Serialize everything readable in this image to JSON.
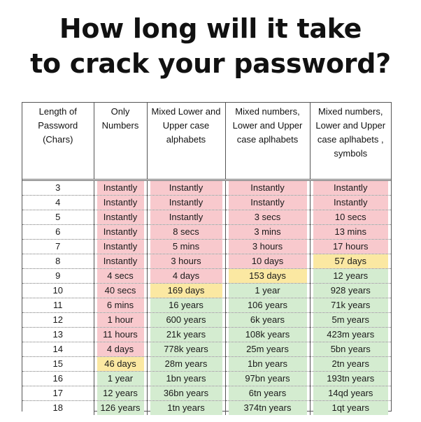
{
  "title": {
    "line1": "How long will it take",
    "line2": "to crack your password?"
  },
  "table": {
    "headers": [
      "Length of Password (Chars)",
      "Only Numbers",
      "Mixed Lower and Upper case alphabets",
      "Mixed numbers, Lower and Upper case aplhabets",
      "Mixed numbers, Lower and Upper case aplhabets , symbols"
    ],
    "rows": [
      {
        "len": "3",
        "cells": [
          {
            "t": "Instantly",
            "c": "pink"
          },
          {
            "t": "Instantly",
            "c": "pink"
          },
          {
            "t": "Instantly",
            "c": "pink"
          },
          {
            "t": "Instantly",
            "c": "pink"
          }
        ]
      },
      {
        "len": "4",
        "cells": [
          {
            "t": "Instantly",
            "c": "pink"
          },
          {
            "t": "Instantly",
            "c": "pink"
          },
          {
            "t": "Instantly",
            "c": "pink"
          },
          {
            "t": "Instantly",
            "c": "pink"
          }
        ]
      },
      {
        "len": "5",
        "cells": [
          {
            "t": "Instantly",
            "c": "pink"
          },
          {
            "t": "Instantly",
            "c": "pink"
          },
          {
            "t": "3 secs",
            "c": "pink"
          },
          {
            "t": "10 secs",
            "c": "pink"
          }
        ]
      },
      {
        "len": "6",
        "cells": [
          {
            "t": "Instantly",
            "c": "pink"
          },
          {
            "t": "8 secs",
            "c": "pink"
          },
          {
            "t": "3 mins",
            "c": "pink"
          },
          {
            "t": "13 mins",
            "c": "pink"
          }
        ]
      },
      {
        "len": "7",
        "cells": [
          {
            "t": "Instantly",
            "c": "pink"
          },
          {
            "t": "5 mins",
            "c": "pink"
          },
          {
            "t": "3 hours",
            "c": "pink"
          },
          {
            "t": "17 hours",
            "c": "pink"
          }
        ]
      },
      {
        "len": "8",
        "cells": [
          {
            "t": "Instantly",
            "c": "pink"
          },
          {
            "t": "3 hours",
            "c": "pink"
          },
          {
            "t": "10 days",
            "c": "pink"
          },
          {
            "t": "57 days",
            "c": "yellow"
          }
        ]
      },
      {
        "len": "9",
        "cells": [
          {
            "t": "4 secs",
            "c": "pink"
          },
          {
            "t": "4 days",
            "c": "pink"
          },
          {
            "t": "153 days",
            "c": "yellow"
          },
          {
            "t": "12 years",
            "c": "green"
          }
        ]
      },
      {
        "len": "10",
        "cells": [
          {
            "t": "40 secs",
            "c": "pink"
          },
          {
            "t": "169 days",
            "c": "yellow"
          },
          {
            "t": "1 year",
            "c": "green"
          },
          {
            "t": "928 years",
            "c": "green"
          }
        ]
      },
      {
        "len": "11",
        "cells": [
          {
            "t": "6 mins",
            "c": "pink"
          },
          {
            "t": "16 years",
            "c": "green"
          },
          {
            "t": "106 years",
            "c": "green"
          },
          {
            "t": "71k years",
            "c": "green"
          }
        ]
      },
      {
        "len": "12",
        "cells": [
          {
            "t": "1 hour",
            "c": "pink"
          },
          {
            "t": "600 years",
            "c": "green"
          },
          {
            "t": "6k years",
            "c": "green"
          },
          {
            "t": "5m years",
            "c": "green"
          }
        ]
      },
      {
        "len": "13",
        "cells": [
          {
            "t": "11 hours",
            "c": "pink"
          },
          {
            "t": "21k years",
            "c": "green"
          },
          {
            "t": "108k years",
            "c": "green"
          },
          {
            "t": "423m years",
            "c": "green"
          }
        ]
      },
      {
        "len": "14",
        "cells": [
          {
            "t": "4 days",
            "c": "pink"
          },
          {
            "t": "778k years",
            "c": "green"
          },
          {
            "t": "25m years",
            "c": "green"
          },
          {
            "t": "5bn years",
            "c": "green"
          }
        ]
      },
      {
        "len": "15",
        "cells": [
          {
            "t": "46 days",
            "c": "yellow"
          },
          {
            "t": "28m years",
            "c": "green"
          },
          {
            "t": "1bn years",
            "c": "green"
          },
          {
            "t": "2tn years",
            "c": "green"
          }
        ]
      },
      {
        "len": "16",
        "cells": [
          {
            "t": "1 year",
            "c": "green"
          },
          {
            "t": "1bn years",
            "c": "green"
          },
          {
            "t": "97bn years",
            "c": "green"
          },
          {
            "t": "193tn years",
            "c": "green"
          }
        ]
      },
      {
        "len": "17",
        "cells": [
          {
            "t": "12 years",
            "c": "green"
          },
          {
            "t": "36bn years",
            "c": "green"
          },
          {
            "t": "6tn years",
            "c": "green"
          },
          {
            "t": "14qd years",
            "c": "green"
          }
        ]
      },
      {
        "len": "18",
        "cells": [
          {
            "t": "126 years",
            "c": "green"
          },
          {
            "t": "1tn years",
            "c": "green"
          },
          {
            "t": "374tn years",
            "c": "green"
          },
          {
            "t": "1qt years",
            "c": "green"
          }
        ]
      }
    ]
  },
  "colors": {
    "pink": "#f8c9cd",
    "yellow": "#fbe8a2",
    "green": "#d4ecd0"
  }
}
